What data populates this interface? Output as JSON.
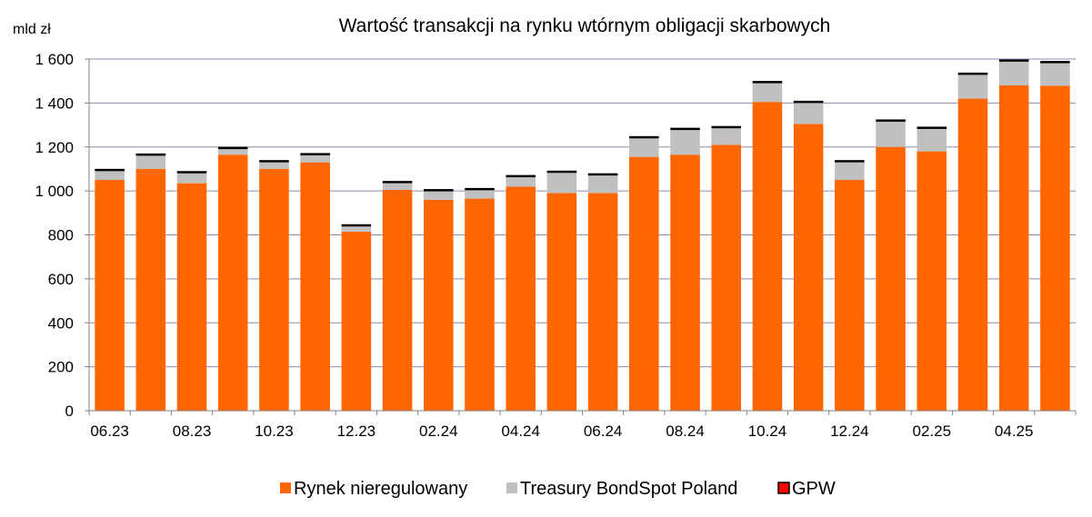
{
  "colors": {
    "series1": "#FF6600",
    "series2": "#C0C0C0",
    "series3": "#000000",
    "legend3_fill": "#FF0000",
    "gridline": "#8C8CB4",
    "axis": "#808080"
  },
  "chart_data": {
    "type": "bar",
    "stacked": true,
    "title": "Wartość transakcji na rynku wtórnym obligacji skarbowych",
    "ylabel": "mld zł",
    "xlabel": "",
    "ylim": [
      0,
      1600
    ],
    "y_ticks": [
      0,
      200,
      400,
      600,
      800,
      1000,
      1200,
      1400,
      1600
    ],
    "y_tick_labels": [
      "0",
      "200",
      "400",
      "600",
      "800",
      "1 000",
      "1 200",
      "1 400",
      "1 600"
    ],
    "grid": true,
    "legend_position": "bottom",
    "categories": [
      "06.23",
      "07.23",
      "08.23",
      "09.23",
      "10.23",
      "11.23",
      "12.23",
      "01.24",
      "02.24",
      "03.24",
      "04.24",
      "05.24",
      "06.24",
      "07.24",
      "08.24",
      "09.24",
      "10.24",
      "11.24",
      "12.24",
      "01.25",
      "02.25",
      "03.25",
      "04.25",
      "05.25"
    ],
    "x_tick_labels": [
      "06.23",
      "",
      "08.23",
      "",
      "10.23",
      "",
      "12.23",
      "",
      "02.24",
      "",
      "04.24",
      "",
      "06.24",
      "",
      "08.24",
      "",
      "10.24",
      "",
      "12.24",
      "",
      "02.25",
      "",
      "04.25",
      ""
    ],
    "series": [
      {
        "name": "Rynek nieregulowany",
        "values": [
          1050,
          1100,
          1035,
          1165,
          1100,
          1130,
          815,
          1005,
          960,
          965,
          1020,
          990,
          990,
          1155,
          1165,
          1210,
          1405,
          1305,
          1050,
          1200,
          1180,
          1420,
          1480,
          1478
        ]
      },
      {
        "name": "Treasury BondSpot Poland",
        "values": [
          40,
          60,
          45,
          25,
          30,
          32,
          23,
          30,
          38,
          38,
          42,
          92,
          80,
          84,
          112,
          75,
          85,
          95,
          80,
          115,
          102,
          108,
          108,
          103
        ]
      },
      {
        "name": "GPW",
        "values": [
          5,
          5,
          5,
          5,
          5,
          5,
          5,
          5,
          5,
          5,
          5,
          5,
          5,
          5,
          5,
          5,
          5,
          5,
          5,
          5,
          5,
          5,
          5,
          5
        ]
      }
    ]
  }
}
